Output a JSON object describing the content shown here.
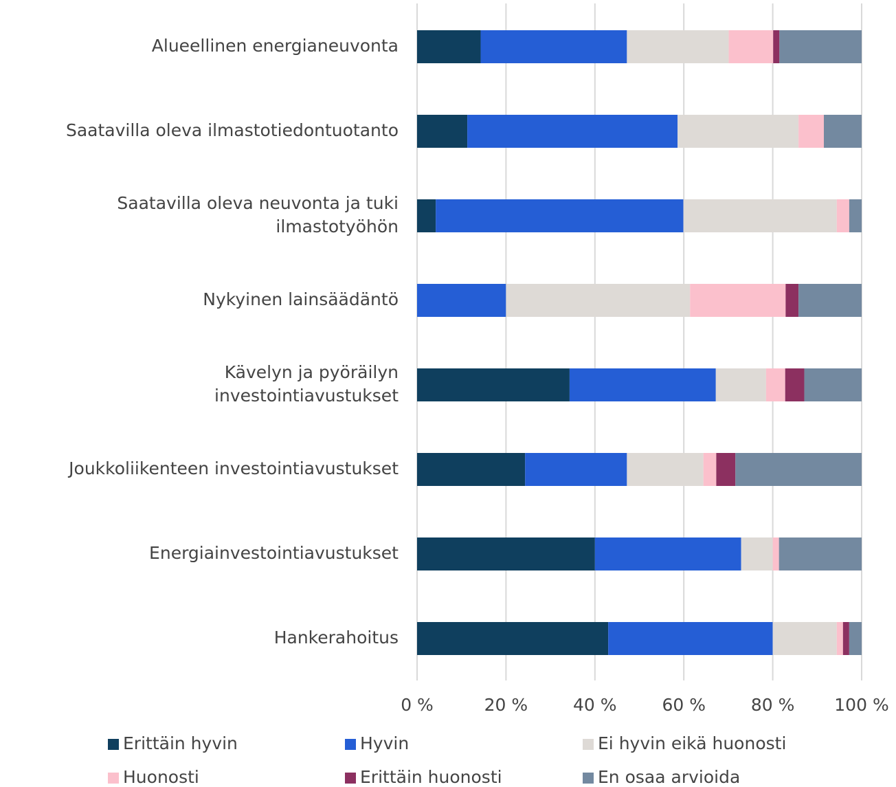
{
  "chart_data": {
    "type": "stacked_barh",
    "categories": [
      "Alueellinen energianeuvonta",
      "Saatavilla oleva ilmastotiedontuotanto",
      "Saatavilla oleva neuvonta ja tuki\nilmastotyöhön",
      "Nykyinen lainsäädäntö",
      "Kävelyn ja pyöräilyn\ninvestointiavustukset",
      "Joukkoliikenteen investointiavustukset",
      "Energiainvestointiavustukset",
      "Hankerahoitus"
    ],
    "series": [
      {
        "name": "Erittäin hyvin",
        "color": "#0f3f5e",
        "values": [
          14.3,
          11.3,
          4.2,
          0,
          34.3,
          24.3,
          40.0,
          43.0
        ]
      },
      {
        "name": "Hyvin",
        "color": "#255ed5",
        "values": [
          32.9,
          47.3,
          55.7,
          20.0,
          32.9,
          22.9,
          32.9,
          37.0
        ]
      },
      {
        "name": "Ei hyvin eikä huonosti",
        "color": "#dedad6",
        "values": [
          22.9,
          27.2,
          34.5,
          41.4,
          11.3,
          17.2,
          7.1,
          14.4
        ]
      },
      {
        "name": "Huonosti",
        "color": "#fbc0cc",
        "values": [
          10.0,
          5.7,
          2.8,
          21.5,
          4.3,
          2.9,
          1.4,
          1.4
        ]
      },
      {
        "name": "Erittäin huonosti",
        "color": "#8c3060",
        "values": [
          1.4,
          0,
          0,
          2.9,
          4.3,
          4.3,
          0,
          1.4
        ]
      },
      {
        "name": "En osaa arvioida",
        "color": "#7389a0",
        "values": [
          18.5,
          8.5,
          2.8,
          14.2,
          12.9,
          28.4,
          18.6,
          2.8
        ]
      }
    ],
    "xlim": [
      0,
      100
    ],
    "xticks": [
      {
        "value": 0,
        "label": "0 %"
      },
      {
        "value": 20,
        "label": "20 %"
      },
      {
        "value": 40,
        "label": "40 %"
      },
      {
        "value": 60,
        "label": "60 %"
      },
      {
        "value": 80,
        "label": "80 %"
      },
      {
        "value": 100,
        "label": "100 %"
      }
    ],
    "grid": true,
    "legend": "bottom"
  }
}
